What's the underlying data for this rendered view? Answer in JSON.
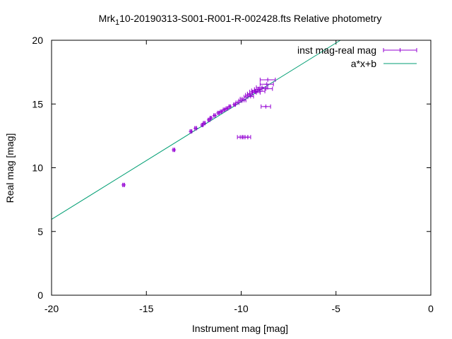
{
  "chart_data": {
    "type": "scatter",
    "title_main": "Mrk",
    "title_sub": "1",
    "title_rest": "10-20190313-S001-R001-R-002428.fts Relative photometry",
    "xlabel": "Instrument mag [mag]",
    "ylabel": "Real mag [mag]",
    "xlim": [
      -20,
      0
    ],
    "ylim": [
      0,
      20
    ],
    "xticks": [
      -20,
      -15,
      -10,
      -5,
      0
    ],
    "yticks": [
      0,
      5,
      10,
      15,
      20
    ],
    "legend_position": "top-right",
    "series": [
      {
        "name": "inst mag-real mag",
        "color": "#9400d3",
        "style": "points with x error bars",
        "points": [
          {
            "x": -16.2,
            "y": 8.65,
            "xerr": 0.05
          },
          {
            "x": -13.55,
            "y": 11.4,
            "xerr": 0.05
          },
          {
            "x": -12.65,
            "y": 12.85,
            "xerr": 0.05
          },
          {
            "x": -12.4,
            "y": 13.1,
            "xerr": 0.05
          },
          {
            "x": -12.05,
            "y": 13.35,
            "xerr": 0.05
          },
          {
            "x": -11.95,
            "y": 13.5,
            "xerr": 0.05
          },
          {
            "x": -11.7,
            "y": 13.75,
            "xerr": 0.05
          },
          {
            "x": -11.6,
            "y": 13.9,
            "xerr": 0.05
          },
          {
            "x": -11.4,
            "y": 14.1,
            "xerr": 0.05
          },
          {
            "x": -11.2,
            "y": 14.3,
            "xerr": 0.05
          },
          {
            "x": -11.05,
            "y": 14.4,
            "xerr": 0.05
          },
          {
            "x": -10.9,
            "y": 14.55,
            "xerr": 0.05
          },
          {
            "x": -10.75,
            "y": 14.65,
            "xerr": 0.05
          },
          {
            "x": -10.6,
            "y": 14.8,
            "xerr": 0.05
          },
          {
            "x": -10.35,
            "y": 14.95,
            "xerr": 0.05
          },
          {
            "x": -10.2,
            "y": 15.1,
            "xerr": 0.08
          },
          {
            "x": -10.05,
            "y": 15.25,
            "xerr": 0.08
          },
          {
            "x": -9.95,
            "y": 15.4,
            "xerr": 0.1
          },
          {
            "x": -9.85,
            "y": 15.3,
            "xerr": 0.1
          },
          {
            "x": -9.75,
            "y": 15.55,
            "xerr": 0.1
          },
          {
            "x": -9.65,
            "y": 15.7,
            "xerr": 0.12
          },
          {
            "x": -9.55,
            "y": 15.8,
            "xerr": 0.12
          },
          {
            "x": -9.5,
            "y": 15.6,
            "xerr": 0.15
          },
          {
            "x": -9.4,
            "y": 15.95,
            "xerr": 0.15
          },
          {
            "x": -9.3,
            "y": 16.05,
            "xerr": 0.15
          },
          {
            "x": -9.2,
            "y": 15.9,
            "xerr": 0.2
          },
          {
            "x": -9.1,
            "y": 16.15,
            "xerr": 0.2
          },
          {
            "x": -9.0,
            "y": 16.0,
            "xerr": 0.25
          },
          {
            "x": -8.9,
            "y": 16.3,
            "xerr": 0.3
          },
          {
            "x": -8.7,
            "y": 16.2,
            "xerr": 0.35
          },
          {
            "x": -8.65,
            "y": 16.55,
            "xerr": 0.35
          },
          {
            "x": -8.6,
            "y": 16.9,
            "xerr": 0.4
          },
          {
            "x": -8.7,
            "y": 14.8,
            "xerr": 0.25
          },
          {
            "x": -10.05,
            "y": 12.4,
            "xerr": 0.15
          },
          {
            "x": -9.8,
            "y": 12.4,
            "xerr": 0.15
          },
          {
            "x": -9.65,
            "y": 12.4,
            "xerr": 0.15
          }
        ]
      },
      {
        "name": "a*x+b",
        "color": "#009e73",
        "style": "line",
        "x": [
          -20,
          -4.77
        ],
        "y": [
          5.95,
          20
        ]
      }
    ]
  }
}
